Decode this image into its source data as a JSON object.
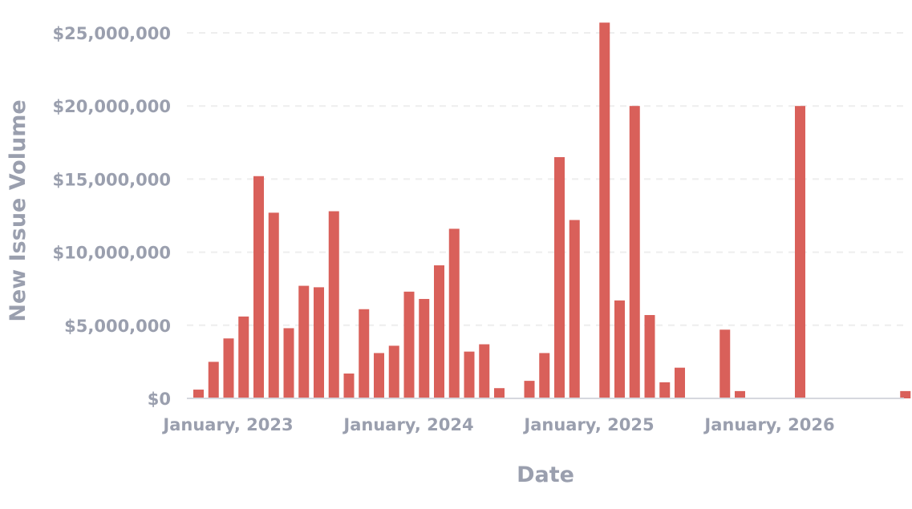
{
  "chart_data": {
    "type": "bar",
    "xlabel": "Date",
    "ylabel": "New Issue Volume",
    "ylim": [
      0,
      25000000
    ],
    "y_ticks": [
      0,
      5000000,
      10000000,
      15000000,
      20000000,
      25000000
    ],
    "y_tick_labels": [
      "$0",
      "$5,000,000",
      "$10,000,000",
      "$15,000,000",
      "$20,000,000",
      "$25,000,000"
    ],
    "x_range": [
      "2022-12",
      "2026-10"
    ],
    "x_tick_labels": [
      {
        "date": "2023-01",
        "label": "January, 2023"
      },
      {
        "date": "2024-01",
        "label": "January, 2024"
      },
      {
        "date": "2025-01",
        "label": "January, 2025"
      },
      {
        "date": "2026-01",
        "label": "January, 2026"
      }
    ],
    "grid": "horizontal",
    "legend": "none",
    "bar_color": "#d9605a",
    "points": [
      {
        "date": "2023-01",
        "value": 600000
      },
      {
        "date": "2023-02",
        "value": 2500000
      },
      {
        "date": "2023-03",
        "value": 4100000
      },
      {
        "date": "2023-04",
        "value": 5600000
      },
      {
        "date": "2023-05",
        "value": 15200000
      },
      {
        "date": "2023-06",
        "value": 12700000
      },
      {
        "date": "2023-07",
        "value": 4800000
      },
      {
        "date": "2023-08",
        "value": 7700000
      },
      {
        "date": "2023-09",
        "value": 7600000
      },
      {
        "date": "2023-10",
        "value": 12800000
      },
      {
        "date": "2023-11",
        "value": 1700000
      },
      {
        "date": "2023-12",
        "value": 6100000
      },
      {
        "date": "2024-01",
        "value": 3100000
      },
      {
        "date": "2024-02",
        "value": 3600000
      },
      {
        "date": "2024-03",
        "value": 7300000
      },
      {
        "date": "2024-04",
        "value": 6800000
      },
      {
        "date": "2024-05",
        "value": 9100000
      },
      {
        "date": "2024-06",
        "value": 11600000
      },
      {
        "date": "2024-07",
        "value": 3200000
      },
      {
        "date": "2024-08",
        "value": 3700000
      },
      {
        "date": "2024-09",
        "value": 700000
      },
      {
        "date": "2024-11",
        "value": 1200000
      },
      {
        "date": "2024-12",
        "value": 3100000
      },
      {
        "date": "2025-01",
        "value": 16500000
      },
      {
        "date": "2025-02",
        "value": 12200000
      },
      {
        "date": "2025-04",
        "value": 25700000
      },
      {
        "date": "2025-05",
        "value": 6700000
      },
      {
        "date": "2025-06",
        "value": 20000000
      },
      {
        "date": "2025-07",
        "value": 5700000
      },
      {
        "date": "2025-08",
        "value": 1100000
      },
      {
        "date": "2025-09",
        "value": 2100000
      },
      {
        "date": "2025-12",
        "value": 4700000
      },
      {
        "date": "2026-01",
        "value": 500000
      },
      {
        "date": "2026-05",
        "value": 20000000
      },
      {
        "date": "2026-12",
        "value": 500000
      }
    ]
  }
}
